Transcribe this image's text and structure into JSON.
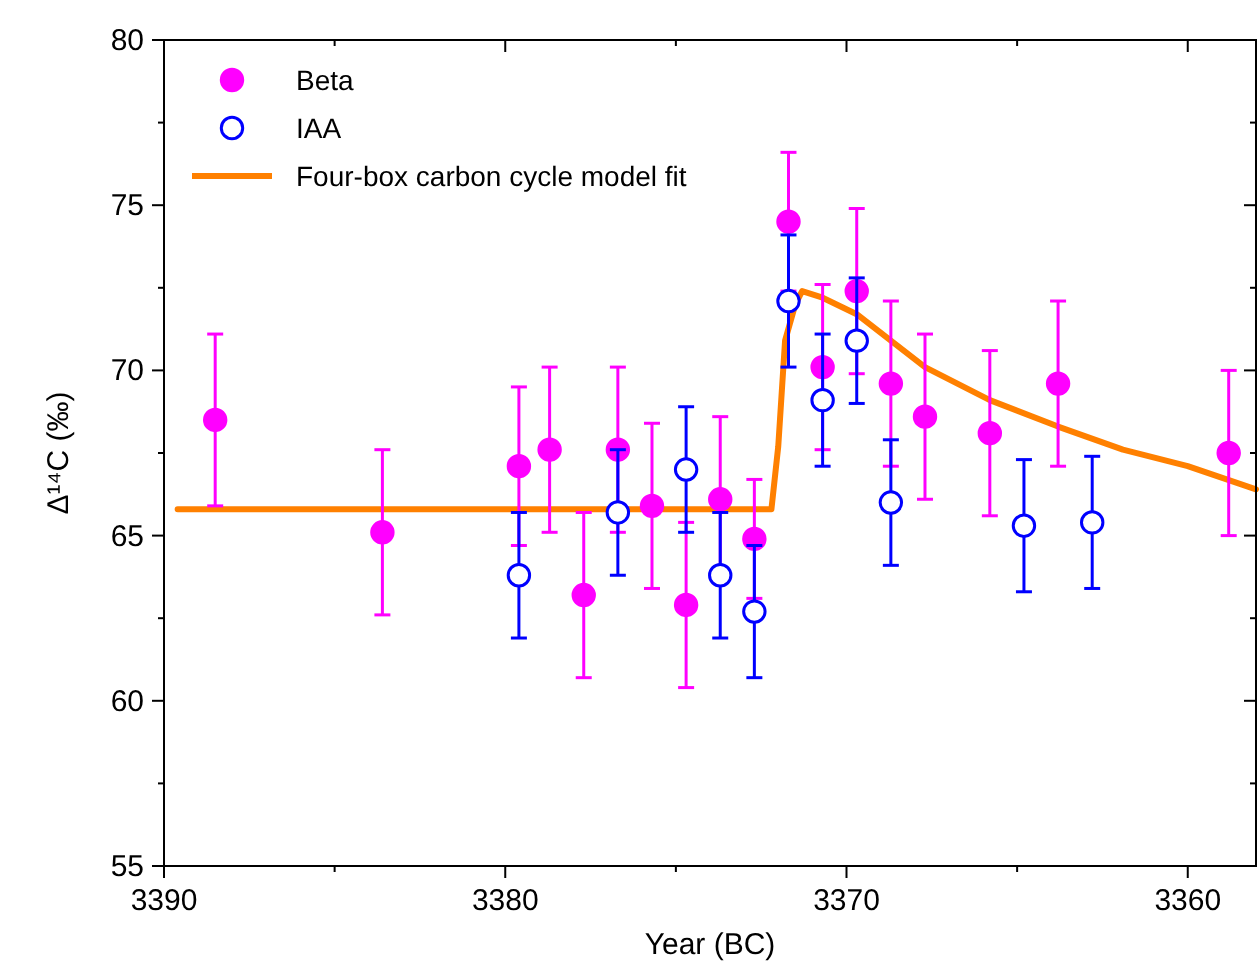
{
  "chart_data": {
    "type": "scatter",
    "xlabel": "Year (BC)",
    "ylabel": "Δ¹⁴C (‰)",
    "xlim": [
      3390,
      3358
    ],
    "xticks": [
      3390,
      {
        "value": 3385,
        "label": null
      },
      3380,
      {
        "value": 3375,
        "label": null
      },
      3370,
      {
        "value": 3365,
        "label": null
      },
      3360
    ],
    "ylim": [
      55,
      80
    ],
    "yticks": [
      55,
      {
        "value": 57.5,
        "label": null
      },
      60,
      {
        "value": 62.5,
        "label": null
      },
      65,
      {
        "value": 67.5,
        "label": null
      },
      70,
      {
        "value": 72.5,
        "label": null
      },
      75,
      {
        "value": 77.5,
        "label": null
      },
      80
    ],
    "legend": "top left",
    "grid": false,
    "marker": "circle",
    "series": [
      {
        "name": "Beta",
        "color": "#ff00ff",
        "x": [
          3388.5,
          3383.6,
          3379.6,
          3378.7,
          3377.7,
          3376.7,
          3375.7,
          3374.7,
          3373.7,
          3372.7,
          3371.7,
          3370.7,
          3369.7,
          3368.7,
          3367.7,
          3365.8,
          3363.8,
          3358.8
        ],
        "values": [
          68.5,
          65.1,
          67.1,
          67.6,
          63.2,
          67.6,
          65.9,
          62.9,
          66.1,
          64.9,
          74.5,
          70.1,
          72.4,
          69.6,
          68.6,
          68.1,
          69.6,
          67.5
        ],
        "errors": [
          2.6,
          2.5,
          2.4,
          2.5,
          2.5,
          2.5,
          2.5,
          2.5,
          2.5,
          1.8,
          2.1,
          2.5,
          2.5,
          2.5,
          2.5,
          2.5,
          2.5,
          2.5
        ]
      },
      {
        "name": "IAA",
        "color": "#0000ff",
        "x": [
          3379.6,
          3376.7,
          3374.7,
          3373.7,
          3372.7,
          3371.7,
          3370.7,
          3369.7,
          3368.7,
          3364.8,
          3362.8
        ],
        "values": [
          63.8,
          65.7,
          67.0,
          63.8,
          62.7,
          72.1,
          69.1,
          70.9,
          66.0,
          65.3,
          65.4
        ],
        "errors": [
          1.9,
          1.9,
          1.9,
          1.9,
          2.0,
          2.0,
          2.0,
          1.9,
          1.9,
          2.0,
          2.0
        ]
      },
      {
        "name": "Four-box carbon cycle model fit",
        "type": "line",
        "color": "#ff8000",
        "marker": "none",
        "line_style": "solid",
        "x": [
          3389.6,
          3372.2,
          3372.0,
          3371.8,
          3371.5,
          3371.3,
          3370.7,
          3369.7,
          3368.7,
          3367.7,
          3365.8,
          3363.8,
          3361.9,
          3360,
          3358
        ],
        "values": [
          65.8,
          65.8,
          67.7,
          70.9,
          72.0,
          72.4,
          72.2,
          71.7,
          70.9,
          70.1,
          69.1,
          68.3,
          67.6,
          67.1,
          66.4
        ]
      }
    ]
  }
}
